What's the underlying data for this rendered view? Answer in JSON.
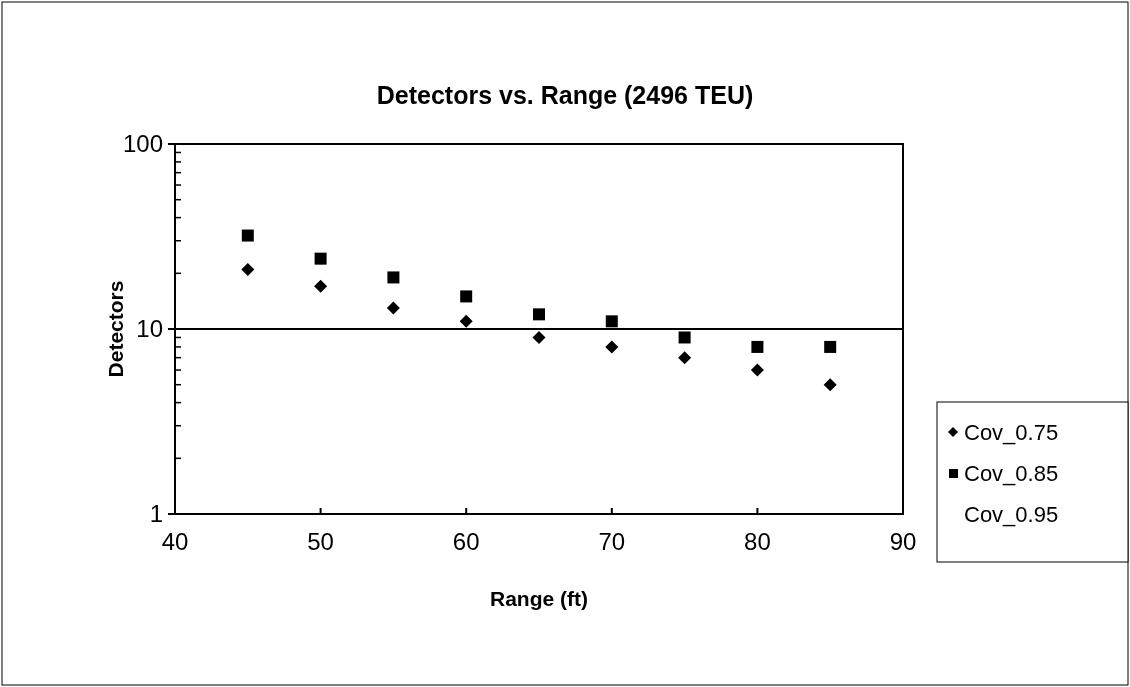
{
  "chart_data": {
    "type": "scatter",
    "title": "Detectors vs. Range (2496 TEU)",
    "xlabel": "Range (ft)",
    "ylabel": "Detectors",
    "x": [
      45,
      50,
      55,
      60,
      65,
      70,
      75,
      80,
      85
    ],
    "series": [
      {
        "name": "Cov_0.75",
        "color": "#000000",
        "marker": "diamond",
        "values": [
          21,
          17,
          13,
          11,
          9,
          8,
          7,
          6,
          5
        ]
      },
      {
        "name": "Cov_0.85",
        "color": "#000000",
        "marker": "square",
        "values": [
          32,
          24,
          19,
          15,
          12,
          11,
          9,
          8,
          8
        ]
      },
      {
        "name": "Cov_0.95",
        "marker": "none",
        "values": [
          null,
          null,
          null,
          null,
          null,
          null,
          null,
          null,
          null
        ]
      }
    ],
    "xlim": [
      40,
      90
    ],
    "xticks": [
      40,
      50,
      60,
      70,
      80,
      90
    ],
    "ylim": [
      1,
      100
    ],
    "yticks": [
      1,
      10,
      100
    ],
    "log": "y",
    "grid": "y",
    "legend": "right"
  }
}
